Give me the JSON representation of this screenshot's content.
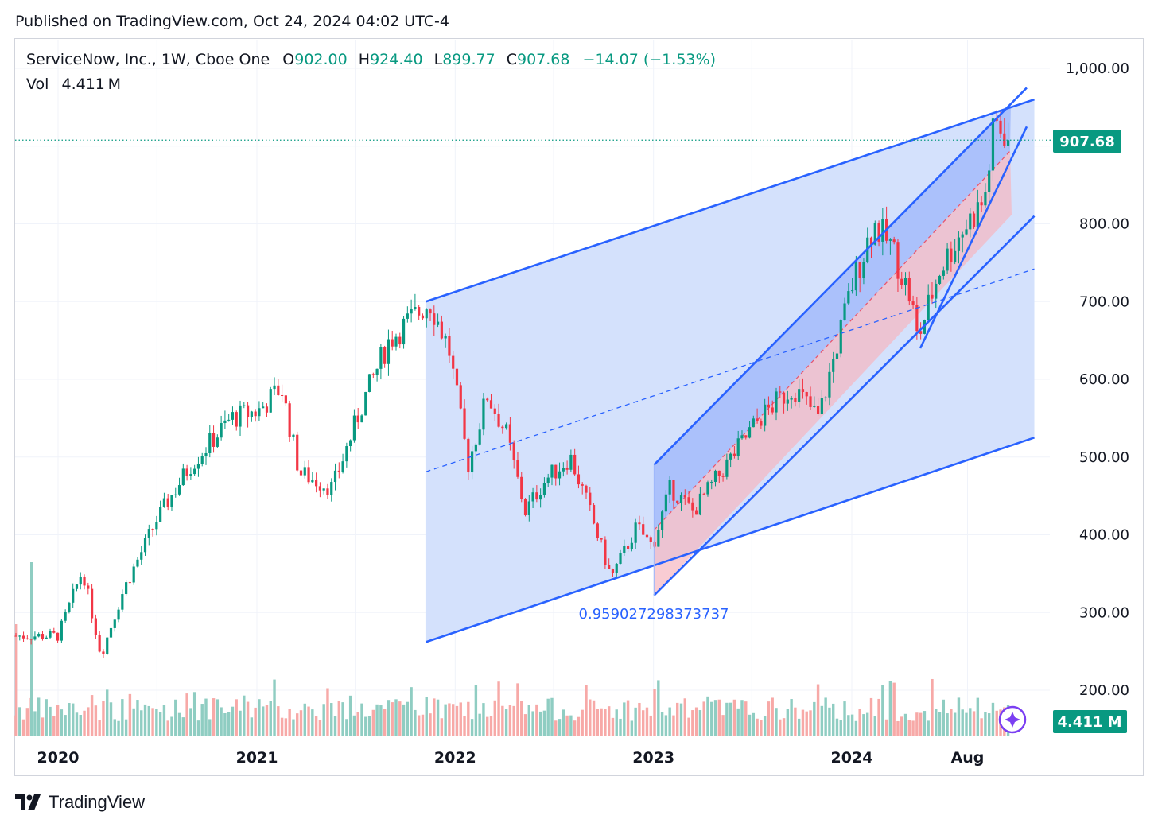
{
  "published": "Published on TradingView.com, Oct 24, 2024 04:02 UTC-4",
  "legend": {
    "symbol": "ServiceNow, Inc., 1W, Cboe One",
    "open_label": "O",
    "open": "902.00",
    "high_label": "H",
    "high": "924.40",
    "low_label": "L",
    "low": "899.77",
    "close_label": "C",
    "close": "907.68",
    "change": "−14.07 (−1.53%)",
    "vol_label": "Vol",
    "vol": "4.411 M"
  },
  "footer": {
    "brand": "TradingView"
  },
  "colors": {
    "up": "#089981",
    "down": "#f23645",
    "up_vol": "#8fcdc2",
    "down_vol": "#f7a9a7",
    "line": "#2962ff",
    "fill_blue": "#d2dffc",
    "fill_blue_dark": "#9db6fb",
    "fill_pink": "#f7b7c0",
    "price_tag": "#089981"
  },
  "chart_data": {
    "type": "candlestick",
    "symbol": "ServiceNow, Inc.",
    "interval": "1W",
    "y_axis": {
      "ticks": [
        "1,000.00",
        "800.00",
        "700.00",
        "600.00",
        "500.00",
        "400.00",
        "300.00",
        "200.00"
      ],
      "ylim": [
        150,
        1020
      ]
    },
    "x_axis": {
      "ticks": [
        "2020",
        "2021",
        "2022",
        "2023",
        "2024",
        "Aug"
      ]
    },
    "last_price_label": "907.68",
    "last_volume_label": "4.411 M",
    "annotation": "0.959027298373737",
    "price_path": [
      [
        "2020-01-01",
        270
      ],
      [
        "2020-02-15",
        355
      ],
      [
        "2020-03-20",
        245
      ],
      [
        "2020-05-01",
        330
      ],
      [
        "2020-07-01",
        420
      ],
      [
        "2020-09-01",
        490
      ],
      [
        "2020-11-15",
        550
      ],
      [
        "2021-01-05",
        560
      ],
      [
        "2021-02-15",
        590
      ],
      [
        "2021-03-20",
        480
      ],
      [
        "2021-05-20",
        460
      ],
      [
        "2021-07-15",
        570
      ],
      [
        "2021-09-01",
        650
      ],
      [
        "2021-11-15",
        700
      ],
      [
        "2021-12-20",
        640
      ],
      [
        "2022-01-25",
        490
      ],
      [
        "2022-03-01",
        580
      ],
      [
        "2022-04-05",
        530
      ],
      [
        "2022-05-10",
        430
      ],
      [
        "2022-06-15",
        470
      ],
      [
        "2022-08-01",
        500
      ],
      [
        "2022-09-01",
        440
      ],
      [
        "2022-10-15",
        345
      ],
      [
        "2022-12-01",
        410
      ],
      [
        "2022-12-30",
        385
      ],
      [
        "2023-02-01",
        460
      ],
      [
        "2023-03-15",
        430
      ],
      [
        "2023-05-15",
        490
      ],
      [
        "2023-07-15",
        550
      ],
      [
        "2023-09-15",
        590
      ],
      [
        "2023-11-01",
        550
      ],
      [
        "2024-01-01",
        720
      ],
      [
        "2024-02-10",
        800
      ],
      [
        "2024-03-15",
        770
      ],
      [
        "2024-04-20",
        700
      ],
      [
        "2024-05-01",
        650
      ],
      [
        "2024-06-10",
        740
      ],
      [
        "2024-07-20",
        790
      ],
      [
        "2024-09-01",
        830
      ],
      [
        "2024-09-20",
        930
      ],
      [
        "2024-10-24",
        907.68
      ]
    ],
    "drawings": [
      {
        "name": "outer-channel-upper",
        "from": [
          "2021-11-08",
          700
        ],
        "to": [
          "2024-12-02",
          960
        ]
      },
      {
        "name": "outer-channel-lower",
        "from": [
          "2021-11-08",
          262
        ],
        "to": [
          "2024-12-02",
          525
        ]
      },
      {
        "name": "outer-channel-median",
        "from": [
          "2021-11-08",
          481
        ],
        "to": [
          "2024-12-02",
          742
        ]
      },
      {
        "name": "inner-channel-upper",
        "from": [
          "2023-01-02",
          490
        ],
        "to": [
          "2024-11-18",
          975
        ]
      },
      {
        "name": "inner-channel-lower",
        "from": [
          "2023-01-02",
          322
        ],
        "to": [
          "2024-12-02",
          810
        ]
      },
      {
        "name": "trendline-short",
        "from": [
          "2024-05-06",
          640
        ],
        "to": [
          "2024-11-18",
          925
        ]
      }
    ]
  }
}
